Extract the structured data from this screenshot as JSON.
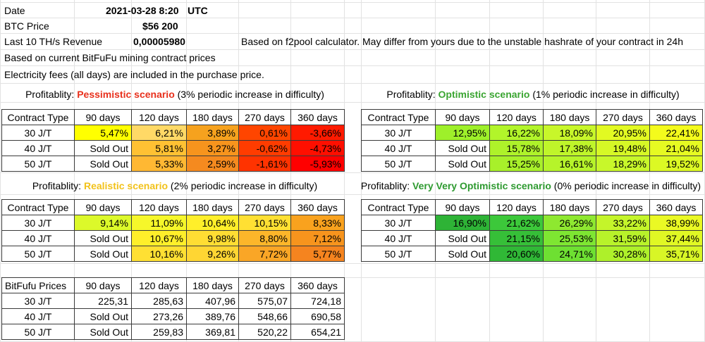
{
  "info": {
    "date_label": "Date",
    "date_value": "2021-03-28 8:20",
    "date_tz": "UTC",
    "btc_label": "BTC Price",
    "btc_value": "$56 200",
    "revenue_label": "Last 10 TH/s Revenue",
    "revenue_value": "0,00005980",
    "revenue_note": "Based on f2pool calculator. May differ from yours due to the unstable hashrate of your contract in 24h",
    "contract_note": "Based on current BitFuFu mining contract prices",
    "electricity_note": "Electricity fees (all days) are included in the purchase price."
  },
  "colors": {
    "pessimistic": "#e8301c",
    "optimistic": "#3aa531",
    "realistic": "#f2c21a",
    "very_optimistic": "#2e9a30",
    "sold_out": "#ffffff"
  },
  "tables": {
    "pessimistic": {
      "prefix": "Profitablity: ",
      "scenario": "Pessimistic scenario",
      "suffix": " (3% periodic increase in difficulty)",
      "headers": [
        "Contract Type",
        "90 days",
        "120 days",
        "180 days",
        "270 days",
        "360 days"
      ],
      "rows": [
        {
          "type": "30 J/T",
          "values": [
            "5,47%",
            "6,21%",
            "3,89%",
            "0,61%",
            "-3,66%"
          ],
          "colors": [
            "#ffff00",
            "#ffd966",
            "#f6a21e",
            "#ff4500",
            "#ff1a00"
          ]
        },
        {
          "type": "40 J/T",
          "values": [
            "Sold Out",
            "5,81%",
            "3,27%",
            "-0,62%",
            "-4,73%"
          ],
          "colors": [
            "#ffffff",
            "#ffc133",
            "#f7941d",
            "#ff3c00",
            "#ff0f00"
          ]
        },
        {
          "type": "50 J/T",
          "values": [
            "Sold Out",
            "5,33%",
            "2,59%",
            "-1,61%",
            "-5,93%"
          ],
          "colors": [
            "#ffffff",
            "#ffb833",
            "#f58a1f",
            "#ff3300",
            "#ff0000"
          ]
        }
      ]
    },
    "optimistic": {
      "prefix": "Profitablity: ",
      "scenario": "Optimistic scenario",
      "suffix": " (1% periodic increase in difficulty)",
      "headers": [
        "Contract Type",
        "90 days",
        "120 days",
        "180 days",
        "270 days",
        "360 days"
      ],
      "rows": [
        {
          "type": "30 J/T",
          "values": [
            "12,95%",
            "16,22%",
            "18,09%",
            "20,95%",
            "22,41%"
          ],
          "colors": [
            "#9ef02a",
            "#b2f52a",
            "#c8f72a",
            "#e2fa22",
            "#f4fb1c"
          ]
        },
        {
          "type": "40 J/T",
          "values": [
            "Sold Out",
            "15,78%",
            "17,38%",
            "19,48%",
            "21,04%"
          ],
          "colors": [
            "#ffffff",
            "#aef22a",
            "#bff52a",
            "#d6f826",
            "#e6fa22"
          ]
        },
        {
          "type": "50 J/T",
          "values": [
            "Sold Out",
            "15,25%",
            "16,61%",
            "18,29%",
            "19,52%"
          ],
          "colors": [
            "#ffffff",
            "#a8f02a",
            "#b6f42a",
            "#c8f72a",
            "#dcf924"
          ]
        }
      ]
    },
    "realistic": {
      "prefix": "Profitablity: ",
      "scenario": "Realistic scenario",
      "suffix": " (2% periodic increase in difficulty)",
      "headers": [
        "Contract Type",
        "90 days",
        "120 days",
        "180 days",
        "270 days",
        "360 days"
      ],
      "rows": [
        {
          "type": "30 J/T",
          "values": [
            "9,14%",
            "11,09%",
            "10,64%",
            "10,15%",
            "8,33%"
          ],
          "colors": [
            "#dcf92a",
            "#f6f72a",
            "#ffef2a",
            "#ffe033",
            "#f9a21e"
          ]
        },
        {
          "type": "40 J/T",
          "values": [
            "Sold Out",
            "10,67%",
            "9,98%",
            "8,80%",
            "7,12%"
          ],
          "colors": [
            "#ffffff",
            "#ffef2a",
            "#ffdd33",
            "#fcb62a",
            "#f7941d"
          ]
        },
        {
          "type": "50 J/T",
          "values": [
            "Sold Out",
            "10,16%",
            "9,26%",
            "7,72%",
            "5,77%"
          ],
          "colors": [
            "#ffffff",
            "#ffe033",
            "#ffd633",
            "#faa626",
            "#f5841f"
          ]
        }
      ]
    },
    "very_optimistic": {
      "prefix": "Profitablity: ",
      "scenario": "Very Very Optimistic scenario",
      "suffix": " (0% periodic increase in difficulty)",
      "headers": [
        "Contract Type",
        "90 days",
        "120 days",
        "180 days",
        "270 days",
        "360 days"
      ],
      "rows": [
        {
          "type": "30 J/T",
          "values": [
            "16,90%",
            "21,62%",
            "26,29%",
            "33,22%",
            "38,99%"
          ],
          "colors": [
            "#2eb336",
            "#3cc83a",
            "#8ee830",
            "#c4f52a",
            "#eaf924"
          ]
        },
        {
          "type": "40 J/T",
          "values": [
            "Sold Out",
            "21,15%",
            "25,53%",
            "31,59%",
            "37,44%"
          ],
          "colors": [
            "#ffffff",
            "#36bf38",
            "#7ee632",
            "#b8f22a",
            "#e0f824"
          ]
        },
        {
          "type": "50 J/T",
          "values": [
            "Sold Out",
            "20,60%",
            "24,71%",
            "30,28%",
            "35,71%"
          ],
          "colors": [
            "#ffffff",
            "#30b836",
            "#6ee032",
            "#aef02a",
            "#d8f626"
          ]
        }
      ]
    },
    "prices": {
      "headers": [
        "BitFufu Prices",
        "90 days",
        "120 days",
        "180 days",
        "270 days",
        "360 days"
      ],
      "rows": [
        {
          "type": "30 J/T",
          "values": [
            "225,31",
            "285,63",
            "407,96",
            "575,07",
            "724,18"
          ]
        },
        {
          "type": "40 J/T",
          "values": [
            "Sold Out",
            "273,26",
            "389,76",
            "548,66",
            "690,58"
          ]
        },
        {
          "type": "50 J/T",
          "values": [
            "Sold Out",
            "259,83",
            "369,81",
            "520,22",
            "654,21"
          ]
        }
      ]
    }
  }
}
